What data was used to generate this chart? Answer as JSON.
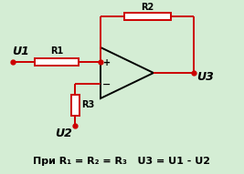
{
  "bg_color": "#d4edd4",
  "wire_color": "#cc0000",
  "black_color": "#000000",
  "formula_text": "При R₁ = R₂ = R₃   U3 = U1 - U2",
  "label_U1": "U1",
  "label_U2": "U2",
  "label_U3": "U3",
  "label_R1": "R1",
  "label_R2": "R2",
  "label_R3": "R3",
  "figsize": [
    2.67,
    1.91
  ],
  "dpi": 100
}
